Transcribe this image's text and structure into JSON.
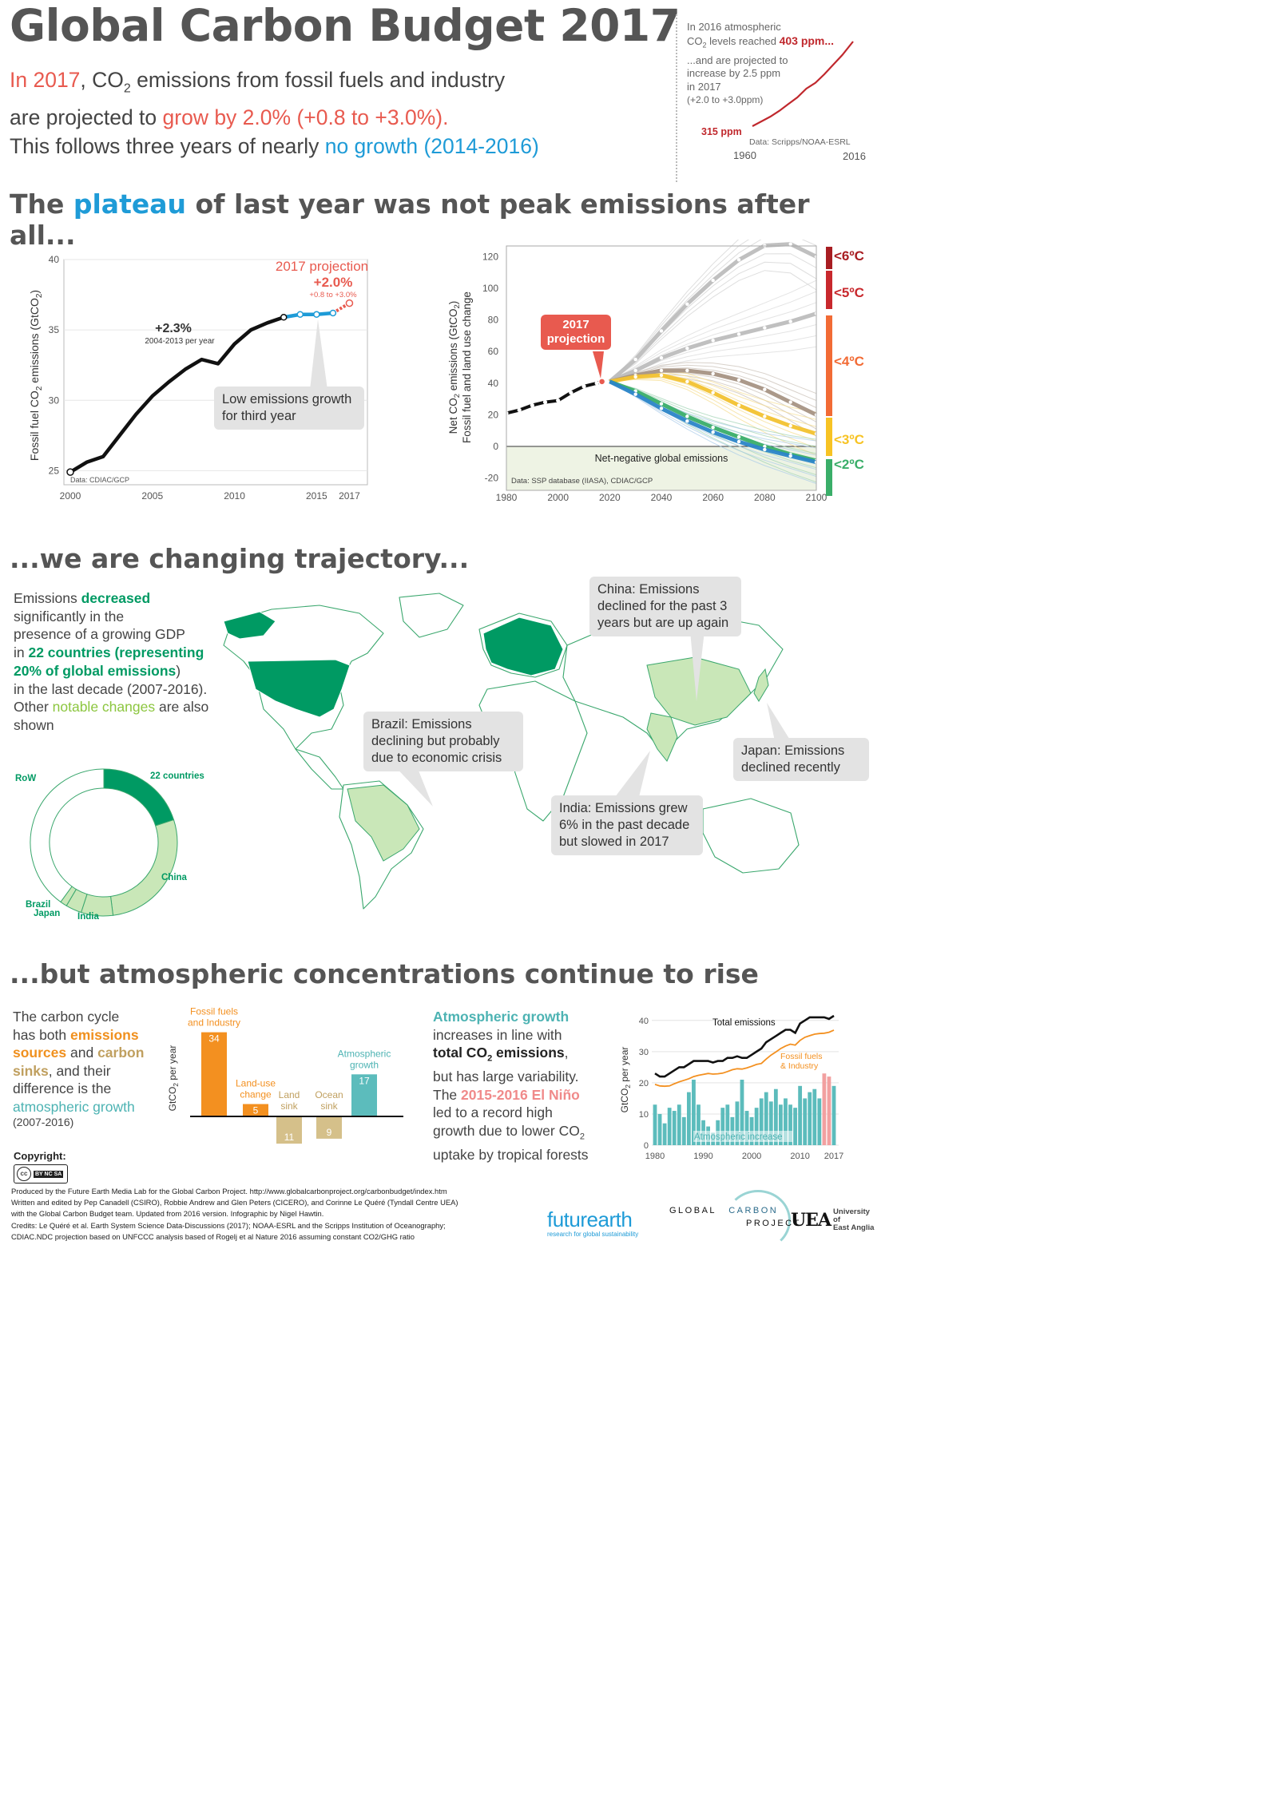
{
  "header": {
    "title": "Global Carbon Budget 2017",
    "line1_pre": "In 2017",
    "line1_mid": ", CO",
    "line1_sub": "2",
    "line1_post": " emissions from fossil fuels and industry",
    "line2_pre": "are projected to ",
    "line2_growth": "grow by 2.0%",
    "line2_range": " (+0.8 to +3.0%).",
    "line3_pre": "This follows three years of nearly ",
    "line3_blue": "no growth (2014-2016)"
  },
  "co2_inset": {
    "text1a": "In 2016 atmospheric",
    "text1b_pre": "CO",
    "text1b_sub": "2",
    "text1b_post": " levels reached ",
    "text1b_val": "403 ppm...",
    "text2a": "...and are projected to",
    "text2b": "increase by 2.5 ppm",
    "text2c": "in 2017",
    "text2d": "(+2.0 to +3.0ppm)",
    "start_label": "315 ppm",
    "source": "Data: Scripps/NOAA-ESRL",
    "x_start": "1960",
    "x_end": "2016",
    "chart_data": {
      "type": "line",
      "x": [
        1960,
        1965,
        1970,
        1975,
        1980,
        1985,
        1990,
        1995,
        2000,
        2005,
        2010,
        2016
      ],
      "values": [
        315,
        320,
        325,
        331,
        338,
        345,
        354,
        360,
        369,
        379,
        389,
        403
      ]
    },
    "color": "#c0282d"
  },
  "section1": {
    "pre": "The ",
    "blue": "plateau",
    "post": " of last year was not peak emissions after all..."
  },
  "fossil_chart": {
    "ylabel_pre": "Fossil fuel CO",
    "ylabel_sub": "2",
    "ylabel_post": " emissions (GtCO",
    "ylabel_sub2": "2",
    "ylabel_end": ")",
    "y_ticks": [
      "25",
      "30",
      "35",
      "40"
    ],
    "x_ticks": [
      "2000",
      "2005",
      "2010",
      "2015",
      "2017"
    ],
    "growth_label": "+2.3%",
    "growth_sub": "2004-2013 per year",
    "proj_title": "2017 projection",
    "proj_value": "+2.0%",
    "proj_range": "+0.8 to +3.0%",
    "callout": "Low emissions growth for third year",
    "source": "Data: CDIAC/GCP",
    "chart_data": {
      "type": "line",
      "x": [
        2000,
        2001,
        2002,
        2003,
        2004,
        2005,
        2006,
        2007,
        2008,
        2009,
        2010,
        2011,
        2012,
        2013,
        2014,
        2015,
        2016,
        2017
      ],
      "values": [
        24.9,
        25.6,
        26.0,
        27.5,
        29.0,
        30.3,
        31.3,
        32.2,
        32.9,
        32.6,
        34.0,
        35.0,
        35.5,
        35.9,
        36.1,
        36.1,
        36.2,
        36.9
      ],
      "ylim": [
        24,
        40
      ],
      "xlim": [
        2000,
        2018
      ],
      "plateau_years": [
        2014,
        2015,
        2016
      ],
      "projection_year": 2017
    }
  },
  "scenario_chart": {
    "ylabel1_pre": "Net CO",
    "ylabel1_sub": "2",
    "ylabel1_post": " emissions (GtCO",
    "ylabel1_sub2": "2",
    "ylabel1_end": ")",
    "ylabel2": "Fossil fuel and land use change",
    "y_ticks": [
      "-20",
      "0",
      "20",
      "40",
      "60",
      "80",
      "100",
      "120"
    ],
    "x_ticks": [
      "1980",
      "2000",
      "2020",
      "2040",
      "2060",
      "2080",
      "2100"
    ],
    "projection_label": "2017 projection",
    "net_negative": "Net-negative global emissions",
    "source": "Data: SSP database (IIASA), CDIAC/GCP",
    "temps": [
      {
        "label": "<6ºC",
        "color": "#a81d22"
      },
      {
        "label": "<5ºC",
        "color": "#c8282d"
      },
      {
        "label": "<4ºC",
        "color": "#f26b35"
      },
      {
        "label": "<3ºC",
        "color": "#f7c324"
      },
      {
        "label": "<2ºC",
        "color": "#3aae69"
      }
    ],
    "chart_data": {
      "type": "line",
      "xlim": [
        1980,
        2100
      ],
      "ylim": [
        -20,
        120
      ],
      "history": {
        "x": [
          1980,
          1985,
          1990,
          1995,
          2000,
          2005,
          2010,
          2015,
          2017
        ],
        "values": [
          21,
          23,
          26,
          28,
          29,
          34,
          38,
          40,
          41
        ]
      },
      "series": [
        {
          "name": "",
          "color": "#bdbdbd",
          "x": [
            2020,
            2030,
            2040,
            2050,
            2060,
            2070,
            2080,
            2090,
            2100
          ],
          "values": [
            41,
            55,
            73,
            90,
            105,
            118,
            127,
            128,
            120
          ]
        },
        {
          "name": "",
          "color": "#bdbdbd",
          "x": [
            2020,
            2030,
            2040,
            2050,
            2060,
            2070,
            2080,
            2090,
            2100
          ],
          "values": [
            41,
            48,
            56,
            62,
            67,
            71,
            75,
            79,
            84
          ]
        },
        {
          "name": "",
          "color": "#a69484",
          "x": [
            2020,
            2030,
            2040,
            2050,
            2060,
            2070,
            2080,
            2090,
            2100
          ],
          "values": [
            41,
            45,
            48,
            48,
            46,
            42,
            36,
            28,
            20
          ]
        },
        {
          "name": "",
          "color": "#f2c230",
          "x": [
            2020,
            2030,
            2040,
            2050,
            2060,
            2070,
            2080,
            2090,
            2100
          ],
          "values": [
            41,
            44,
            45,
            41,
            34,
            26,
            19,
            13,
            8
          ]
        },
        {
          "name": "",
          "color": "#3aae69",
          "x": [
            2020,
            2030,
            2040,
            2050,
            2060,
            2070,
            2080,
            2090,
            2100
          ],
          "values": [
            41,
            35,
            27,
            19,
            12,
            6,
            0,
            -5,
            -9
          ]
        },
        {
          "name": "",
          "color": "#2b85c8",
          "x": [
            2020,
            2030,
            2040,
            2050,
            2060,
            2070,
            2080,
            2090,
            2100
          ],
          "values": [
            41,
            33,
            24,
            16,
            9,
            3,
            -2,
            -6,
            -10
          ]
        }
      ]
    }
  },
  "section2": "...we are changing trajectory...",
  "trajectory_text": {
    "l1a": "Emissions ",
    "l1b": "decreased",
    "l2": "significantly in the",
    "l3": "presence of a growing GDP",
    "l4a": "in ",
    "l4b": "22 countries (representing",
    "l5b": "20% of global emissions",
    "l5c": ")",
    "l6": "in the last decade (2007-2016).",
    "l7a": "Other ",
    "l7b": "notable changes",
    "l7c": " are also",
    "l8": "shown"
  },
  "donut": {
    "chart_data": {
      "type": "pie",
      "labels": [
        "22 countries",
        "China",
        "India",
        "Japan",
        "Brazil",
        "RoW"
      ],
      "values": [
        20,
        28,
        7,
        3.5,
        1.5,
        40
      ],
      "colors": [
        "#009a63",
        "#c9e7b8",
        "#c9e7b8",
        "#c9e7b8",
        "#c9e7b8",
        "#ffffff"
      ]
    }
  },
  "map_callouts": {
    "china": "China: Emissions declined for the past 3 years but are up again",
    "brazil": "Brazil: Emissions declining but probably due to economic crisis",
    "japan": "Japan: Emissions declined recently",
    "india": "India: Emissions grew 6% in the past decade but slowed in 2017"
  },
  "section3": "...but atmospheric concentrations continue to rise",
  "cycle_text": {
    "l1": "The carbon cycle",
    "l2a": "has both ",
    "l2b": "emissions",
    "l3a": "sources",
    "l3b": " and ",
    "l3c": "carbon",
    "l4a": "sinks",
    "l4b": ", and their",
    "l5": "difference is the",
    "l6": "atmospheric growth",
    "l7": "(2007-2016)"
  },
  "budget_chart": {
    "ylabel_pre": "GtCO",
    "ylabel_sub": "2",
    "ylabel_post": " per year",
    "chart_data": {
      "type": "bar",
      "categories": [
        "Fossil fuels and Industry",
        "Land-use change",
        "Land sink",
        "Ocean sink",
        "Atmospheric growth"
      ],
      "values": [
        34,
        5,
        -11,
        -9,
        17
      ],
      "colors": [
        "#f39020",
        "#f39020",
        "#d5c08a",
        "#d5c08a",
        "#5cbcbc"
      ]
    }
  },
  "atm_text": {
    "l1": "Atmospheric growth",
    "l2": "increases in line with",
    "l3_pre": "total CO",
    "l3_sub": "2",
    "l3_post": " emissions",
    "l3_end": ",",
    "l4": "but has large variability.",
    "l5a": "The ",
    "l5b": "2015-2016 El Niño",
    "l6": "led to a record high",
    "l7_pre": "growth due to lower CO",
    "l7_sub": "2",
    "l8": "uptake by tropical forests"
  },
  "atm_chart": {
    "ylabel_pre": "GtCO",
    "ylabel_sub": "2",
    "ylabel_post": " per year",
    "y_ticks": [
      "0",
      "10",
      "20",
      "30",
      "40"
    ],
    "x_ticks": [
      "1980",
      "1990",
      "2000",
      "2010",
      "2017"
    ],
    "total_label": "Total emissions",
    "ff_label_1": "Fossil fuels",
    "ff_label_2": "& Industry",
    "atm_label": "Atmospheric increase",
    "chart_data": {
      "type": "bar",
      "x": [
        1980,
        1981,
        1982,
        1983,
        1984,
        1985,
        1986,
        1987,
        1988,
        1989,
        1990,
        1991,
        1992,
        1993,
        1994,
        1995,
        1996,
        1997,
        1998,
        1999,
        2000,
        2001,
        2002,
        2003,
        2004,
        2005,
        2006,
        2007,
        2008,
        2009,
        2010,
        2011,
        2012,
        2013,
        2014,
        2015,
        2016,
        2017
      ],
      "atmospheric": [
        13,
        10,
        7,
        12,
        11,
        13,
        9,
        17,
        21,
        13,
        8,
        6,
        4,
        8,
        12,
        13,
        9,
        14,
        21,
        11,
        9,
        12,
        15,
        17,
        14,
        18,
        13,
        15,
        13,
        12,
        19,
        15,
        17,
        18,
        15,
        23,
        22,
        19
      ],
      "total": [
        23,
        22,
        22,
        23,
        24,
        25,
        25,
        26,
        27,
        27,
        27,
        27,
        26.5,
        27,
        27,
        28,
        28,
        28.5,
        28,
        28,
        29,
        30,
        31,
        33,
        34,
        35,
        36,
        37,
        37,
        36,
        39,
        40,
        41,
        41,
        41,
        41,
        40.5,
        41.5
      ],
      "fossil": [
        19.5,
        19,
        18.9,
        19,
        19.7,
        20.3,
        20.8,
        21.3,
        22,
        22.4,
        22.7,
        23,
        22.8,
        22.9,
        23.1,
        23.6,
        24.2,
        24.5,
        24.4,
        24.8,
        25.3,
        25.9,
        26.2,
        27.6,
        28.9,
        29.9,
        31,
        31.8,
        32.4,
        32.1,
        33.6,
        34.6,
        35.1,
        35.6,
        35.8,
        35.9,
        36.2,
        36.9
      ],
      "ylim": [
        0,
        42
      ],
      "elnino_years": [
        2015,
        2016
      ]
    }
  },
  "footer": {
    "copyright": "Copyright:",
    "cc": "cc",
    "cc_terms": "BY  NC  SA",
    "lines": [
      "Produced by the Future Earth Media Lab for the Global Carbon Project. http://www.globalcarbonproject.org/carbonbudget/index.htm",
      "Written and edited by Pep Canadell (CSIRO), Robbie Andrew and Glen Peters (CICERO), and Corinne Le Quéré (Tyndall Centre UEA)",
      "with the Global Carbon Budget team. Updated from 2016 version. Infographic by Nigel Hawtin.",
      "Credits: Le Quéré et al. Earth System Science Data-Discussions (2017); NOAA-ESRL and the Scripps Institution of Oceanography;",
      "CDIAC.NDC projection based on UNFCCC analysis based of Rogelj et al Nature 2016 assuming constant CO2/GHG ratio"
    ],
    "futurearth": "futurearth",
    "futurearth_sub": "research for global sustainability",
    "gcp1": "GLOBAL",
    "gcp2": "CARBON",
    "gcp3": "PROJECT",
    "uea_mark": "UEA",
    "uea1": "University of",
    "uea2": "East Anglia"
  }
}
